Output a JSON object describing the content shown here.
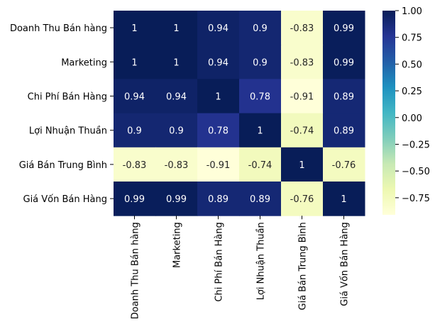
{
  "chart_data": {
    "type": "heatmap",
    "title": "",
    "xlabel": "",
    "ylabel": "",
    "row_labels": [
      "Doanh Thu Bán hàng",
      "Marketing",
      "Chi Phí Bán Hàng",
      "Lợi Nhuận Thuần",
      "Giá Bán Trung Bình",
      "Giá Vốn Bán Hàng"
    ],
    "col_labels": [
      "Doanh Thu Bán hàng",
      "Marketing",
      "Chi Phí Bán Hàng",
      "Lợi Nhuận Thuần",
      "Giá Bán Trung Bình",
      "Giá Vốn Bán Hàng"
    ],
    "values": [
      [
        1,
        1,
        0.94,
        0.9,
        -0.83,
        0.99
      ],
      [
        1,
        1,
        0.94,
        0.9,
        -0.83,
        0.99
      ],
      [
        0.94,
        0.94,
        1,
        0.78,
        -0.91,
        0.89
      ],
      [
        0.9,
        0.9,
        0.78,
        1,
        -0.74,
        0.89
      ],
      [
        -0.83,
        -0.83,
        -0.91,
        -0.74,
        1,
        -0.76
      ],
      [
        0.99,
        0.99,
        0.89,
        0.89,
        -0.76,
        1
      ]
    ],
    "value_labels": [
      [
        "1",
        "1",
        "0.94",
        "0.9",
        "-0.83",
        "0.99"
      ],
      [
        "1",
        "1",
        "0.94",
        "0.9",
        "-0.83",
        "0.99"
      ],
      [
        "0.94",
        "0.94",
        "1",
        "0.78",
        "-0.91",
        "0.89"
      ],
      [
        "0.9",
        "0.9",
        "0.78",
        "1",
        "-0.74",
        "0.89"
      ],
      [
        "-0.83",
        "-0.83",
        "-0.91",
        "-0.74",
        "1",
        "-0.76"
      ],
      [
        "0.99",
        "0.99",
        "0.89",
        "0.89",
        "-0.76",
        "1"
      ]
    ],
    "colormap": "YlGnBu",
    "colorbar": {
      "vmin": -0.91,
      "vmax": 1.0,
      "ticks": [
        1.0,
        0.75,
        0.5,
        0.25,
        0.0,
        -0.25,
        -0.5,
        -0.75
      ],
      "tick_labels": [
        "1.00",
        "0.75",
        "0.50",
        "0.25",
        "0.00",
        "−0.25",
        "−0.50",
        "−0.75"
      ]
    }
  }
}
